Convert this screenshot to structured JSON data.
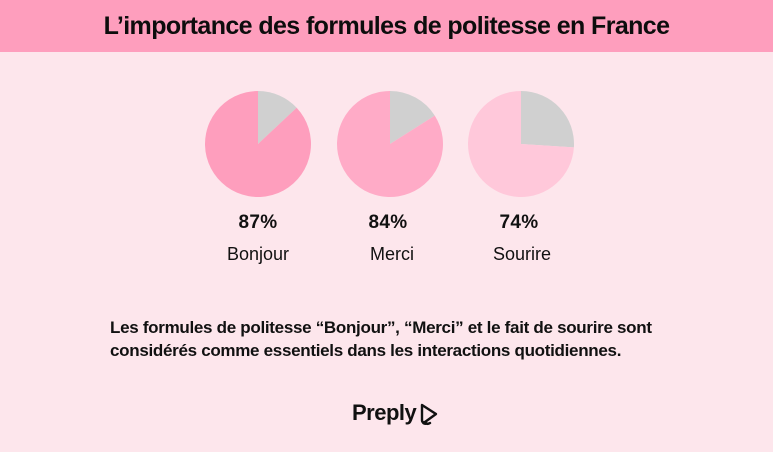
{
  "title": "L’importance des formules de politesse en France",
  "chart_data": {
    "type": "pie",
    "title": "L’importance des formules de politesse en France",
    "items": [
      {
        "label": "Bonjour",
        "value": 87,
        "value_label": "87%"
      },
      {
        "label": "Merci",
        "value": 84,
        "value_label": "84%"
      },
      {
        "label": "Sourire",
        "value": 74,
        "value_label": "74%"
      }
    ],
    "colors": {
      "fill": [
        "#fe9ebd",
        "#ffabc7",
        "#ffc8da"
      ],
      "remainder": "#d0d0d0"
    }
  },
  "caption": "Les formules de politesse “Bonjour”, “Merci” et le fait de sourire sont considérés comme essentiels dans les interactions quotidiennes.",
  "brand": {
    "name": "Preply",
    "icon": "preply-logo-icon"
  }
}
